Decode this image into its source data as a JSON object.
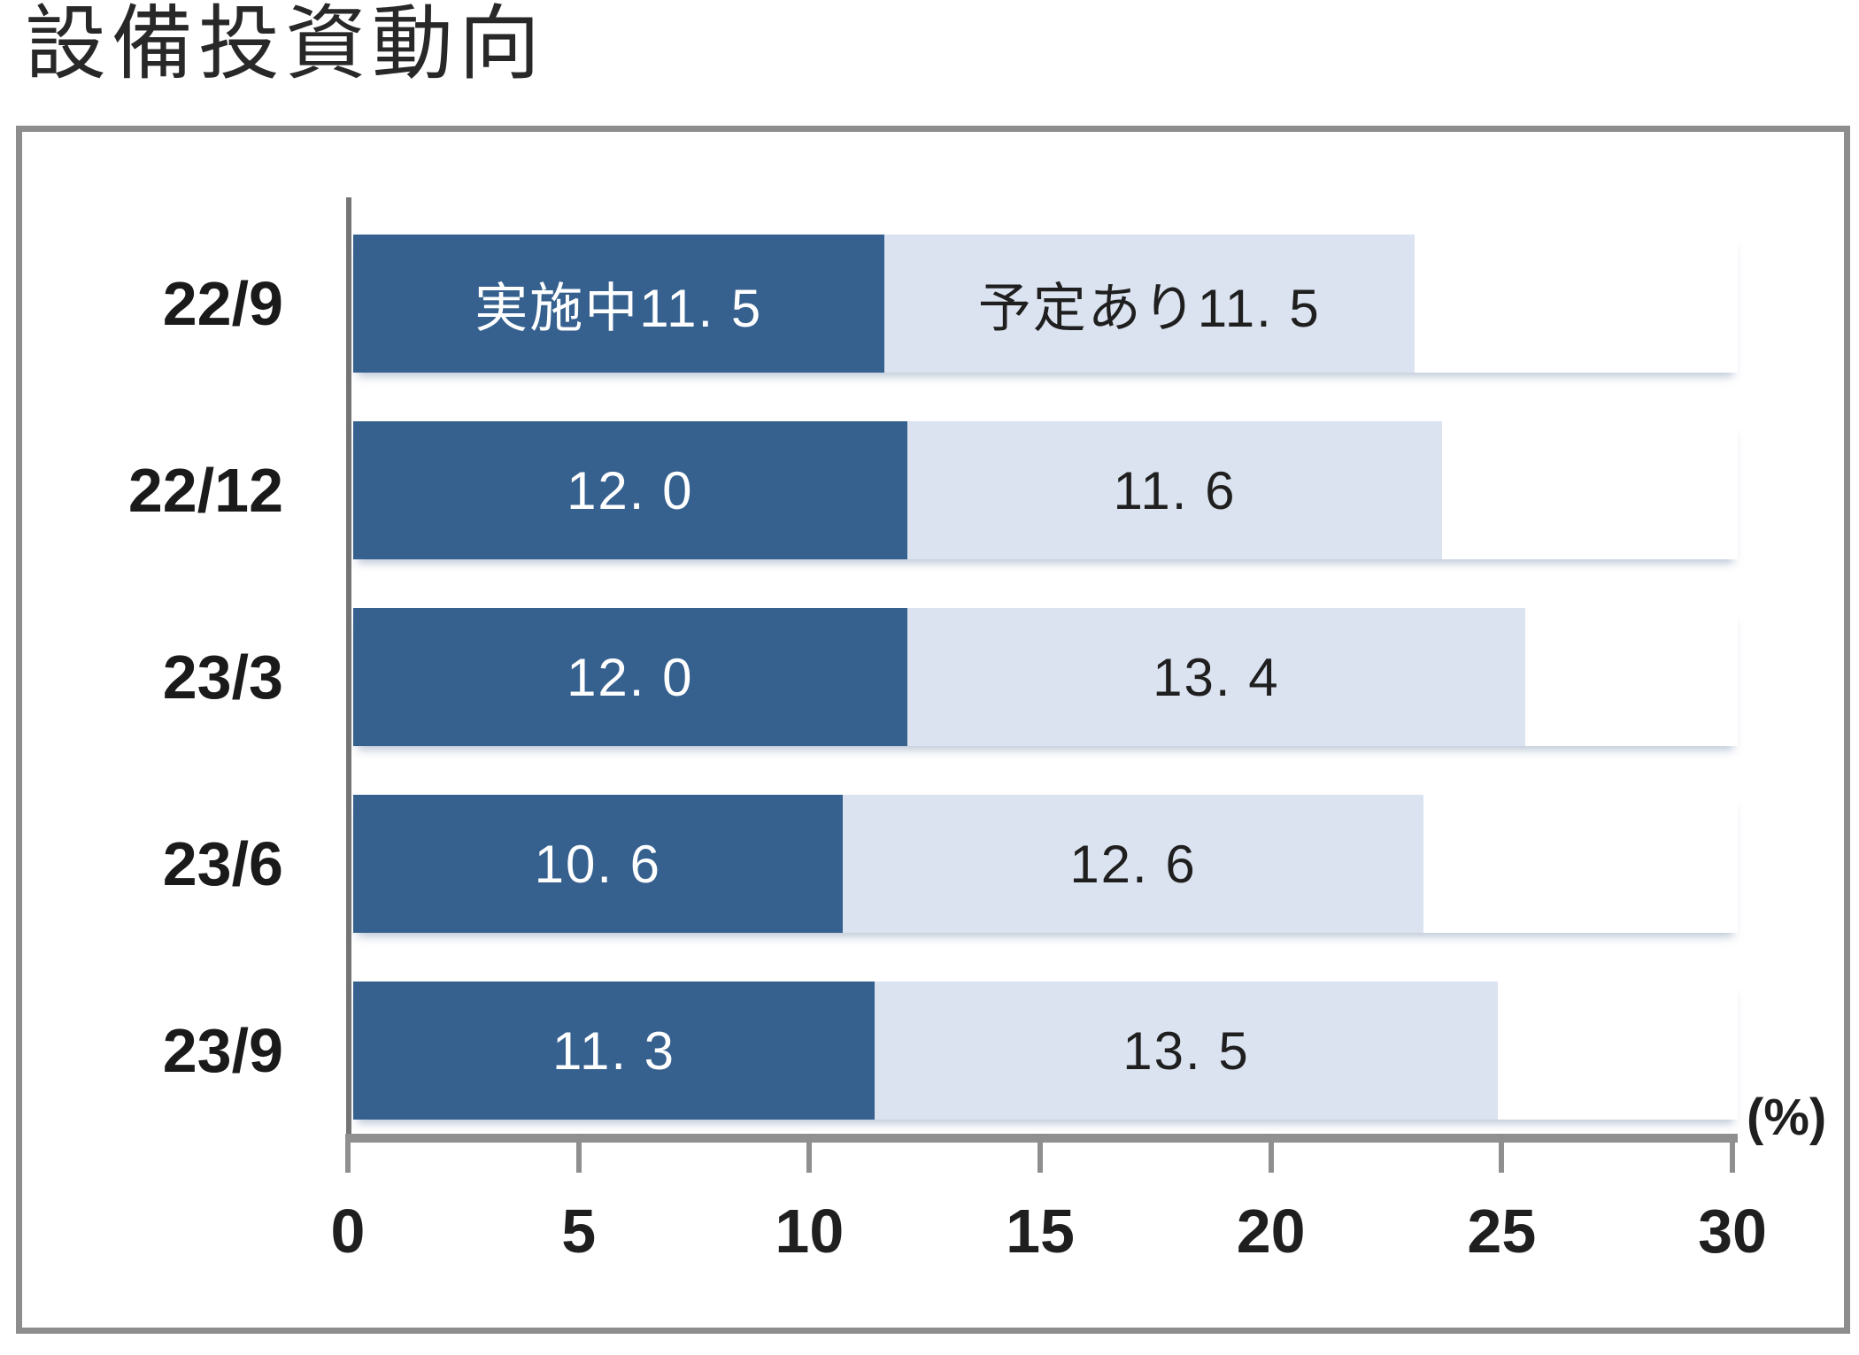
{
  "title": "設備投資動向",
  "chart_data": {
    "type": "bar",
    "orientation": "horizontal",
    "stacked": true,
    "title": "設備投資動向",
    "categories": [
      "22/9",
      "22/12",
      "23/3",
      "23/6",
      "23/9"
    ],
    "series": [
      {
        "key": "in-progress",
        "name": "実施中",
        "values": [
          11.5,
          12.0,
          12.0,
          10.6,
          11.3
        ],
        "color": "#36618f",
        "text_color": "#ffffff"
      },
      {
        "key": "planned",
        "name": "予定あり",
        "values": [
          11.5,
          11.6,
          13.4,
          12.6,
          13.5
        ],
        "color": "#dbe3f0",
        "text_color": "#1f1f1f"
      }
    ],
    "bar_labels": [
      [
        "実施中11. 5",
        "予定あり11. 5"
      ],
      [
        "12. 0",
        "11. 6"
      ],
      [
        "12. 0",
        "13. 4"
      ],
      [
        "10. 6",
        "12. 6"
      ],
      [
        "11. 3",
        "13. 5"
      ]
    ],
    "xlim": [
      0,
      30
    ],
    "x_ticks": [
      0,
      5,
      10,
      15,
      20,
      25,
      30
    ],
    "unit_label": "(%)",
    "xlabel": "(%)",
    "ylabel": "",
    "legend_position": "none",
    "grid": false
  },
  "colors": {
    "bar_dark": "#36618f",
    "bar_light": "#dbe3f0",
    "dark_bar_text": "#ffffff",
    "light_bar_text": "#1f1f1f",
    "axis_line": "#909090",
    "y_axis_line": "#757575",
    "tick_mark": "#8f8f8f",
    "frame_border": "#8d8d8d",
    "title_text": "#282828",
    "background": "#ffffff"
  }
}
